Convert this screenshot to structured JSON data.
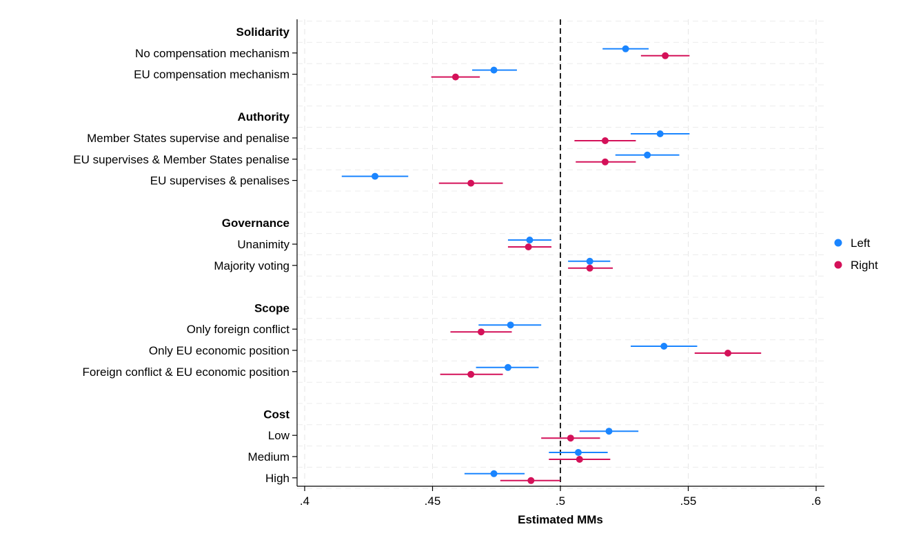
{
  "chart_data": {
    "type": "scatter",
    "subtype": "dot-and-whisker",
    "xlabel": "Estimated MMs",
    "xlim": [
      0.4,
      0.6
    ],
    "xticks": [
      0.4,
      0.45,
      0.5,
      0.55,
      0.6
    ],
    "xtick_labels": [
      ".4",
      ".45",
      ".5",
      ".55",
      ".6"
    ],
    "reference_line": 0.5,
    "grid": true,
    "legend_position": "right",
    "series": [
      {
        "name": "Left",
        "color": "#1a85ff"
      },
      {
        "name": "Right",
        "color": "#d41159"
      }
    ],
    "groups": [
      {
        "name": "Solidarity",
        "levels": [
          {
            "label": "No compensation mechanism",
            "left": {
              "est": 0.5255,
              "lo": 0.5165,
              "hi": 0.5345
            },
            "right": {
              "est": 0.541,
              "lo": 0.5315,
              "hi": 0.5505
            }
          },
          {
            "label": "EU compensation mechanism",
            "left": {
              "est": 0.474,
              "lo": 0.4655,
              "hi": 0.483
            },
            "right": {
              "est": 0.459,
              "lo": 0.4495,
              "hi": 0.4685
            }
          }
        ]
      },
      {
        "name": "Authority",
        "levels": [
          {
            "label": "Member States supervise and penalise",
            "left": {
              "est": 0.539,
              "lo": 0.5275,
              "hi": 0.5505
            },
            "right": {
              "est": 0.5175,
              "lo": 0.5055,
              "hi": 0.5295
            }
          },
          {
            "label": "EU supervises & Member States penalise",
            "left": {
              "est": 0.534,
              "lo": 0.5215,
              "hi": 0.5465
            },
            "right": {
              "est": 0.5175,
              "lo": 0.506,
              "hi": 0.5295
            }
          },
          {
            "label": "EU supervises & penalises",
            "left": {
              "est": 0.4275,
              "lo": 0.4145,
              "hi": 0.4405
            },
            "right": {
              "est": 0.465,
              "lo": 0.4525,
              "hi": 0.4775
            }
          }
        ]
      },
      {
        "name": "Governance",
        "levels": [
          {
            "label": "Unanimity",
            "left": {
              "est": 0.488,
              "lo": 0.4795,
              "hi": 0.4965
            },
            "right": {
              "est": 0.4875,
              "lo": 0.4795,
              "hi": 0.4965
            }
          },
          {
            "label": "Majority voting",
            "left": {
              "est": 0.5115,
              "lo": 0.503,
              "hi": 0.5195
            },
            "right": {
              "est": 0.5115,
              "lo": 0.503,
              "hi": 0.5205
            }
          }
        ]
      },
      {
        "name": "Scope",
        "levels": [
          {
            "label": "Only foreign conflict",
            "left": {
              "est": 0.4805,
              "lo": 0.468,
              "hi": 0.4925
            },
            "right": {
              "est": 0.469,
              "lo": 0.457,
              "hi": 0.481
            }
          },
          {
            "label": "Only EU economic position",
            "left": {
              "est": 0.5405,
              "lo": 0.5275,
              "hi": 0.5535
            },
            "right": {
              "est": 0.5655,
              "lo": 0.5525,
              "hi": 0.5785
            }
          },
          {
            "label": "Foreign conflict & EU economic position",
            "left": {
              "est": 0.4795,
              "lo": 0.467,
              "hi": 0.4915
            },
            "right": {
              "est": 0.465,
              "lo": 0.453,
              "hi": 0.4775
            }
          }
        ]
      },
      {
        "name": "Cost",
        "levels": [
          {
            "label": "Low",
            "left": {
              "est": 0.519,
              "lo": 0.5075,
              "hi": 0.5305
            },
            "right": {
              "est": 0.504,
              "lo": 0.4925,
              "hi": 0.5155
            }
          },
          {
            "label": "Medium",
            "left": {
              "est": 0.507,
              "lo": 0.4955,
              "hi": 0.5185
            },
            "right": {
              "est": 0.5075,
              "lo": 0.4955,
              "hi": 0.5195
            }
          },
          {
            "label": "High",
            "left": {
              "est": 0.474,
              "lo": 0.4625,
              "hi": 0.486
            },
            "right": {
              "est": 0.4885,
              "lo": 0.4765,
              "hi": 0.5
            }
          }
        ]
      }
    ]
  }
}
